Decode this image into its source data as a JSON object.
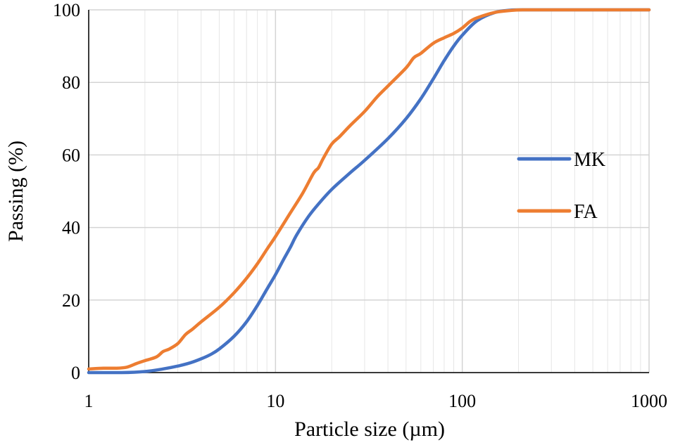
{
  "chart_data": {
    "type": "line",
    "title": "",
    "xlabel": "Particle size (µm)",
    "ylabel": "Passing (%)",
    "xscale": "log",
    "xlim": [
      1,
      1000
    ],
    "ylim": [
      0,
      100
    ],
    "x_ticks": [
      {
        "value": 1,
        "label": "1"
      },
      {
        "value": 10,
        "label": "10"
      },
      {
        "value": 100,
        "label": "100"
      },
      {
        "value": 1000,
        "label": "1000"
      }
    ],
    "y_ticks": [
      {
        "value": 0,
        "label": "0"
      },
      {
        "value": 20,
        "label": "20"
      },
      {
        "value": 40,
        "label": "40"
      },
      {
        "value": 60,
        "label": "60"
      },
      {
        "value": 80,
        "label": "80"
      },
      {
        "value": 100,
        "label": "100"
      }
    ],
    "grid": true,
    "legend_position": "right",
    "series": [
      {
        "name": "MK",
        "color": "#4472C4",
        "x": [
          1,
          1.5,
          2,
          2.5,
          3,
          3.5,
          4,
          4.5,
          5,
          6,
          7,
          8,
          9,
          10,
          11,
          12,
          13,
          15,
          17,
          20,
          25,
          30,
          40,
          50,
          60,
          70,
          80,
          90,
          100,
          120,
          150,
          180,
          210,
          300,
          500,
          1000
        ],
        "y": [
          0,
          0,
          0.3,
          1,
          1.8,
          2.7,
          3.8,
          5,
          6.5,
          10,
          14,
          18.5,
          23,
          27,
          31,
          34.5,
          38,
          43,
          46.5,
          50.5,
          55,
          58.5,
          64.5,
          70,
          75.5,
          81,
          86,
          90,
          93,
          97,
          99.3,
          99.9,
          100,
          100,
          100,
          100
        ]
      },
      {
        "name": "FA",
        "color": "#ED7D31",
        "x": [
          1,
          1.2,
          1.4,
          1.6,
          1.8,
          2,
          2.3,
          2.5,
          2.7,
          3,
          3.3,
          3.6,
          4,
          5,
          6,
          7,
          8,
          9,
          10,
          12,
          14,
          16,
          17,
          18,
          20,
          22,
          25,
          30,
          35,
          40,
          50,
          55,
          60,
          70,
          80,
          90,
          100,
          110,
          120,
          150,
          180,
          210,
          300,
          500,
          1000
        ],
        "y": [
          1,
          1.2,
          1.2,
          1.5,
          2.5,
          3.3,
          4.3,
          5.8,
          6.5,
          8,
          10.5,
          12,
          14,
          18,
          22,
          26,
          30,
          34,
          37.5,
          44,
          49.5,
          55,
          56.5,
          59,
          63,
          65,
          68,
          72,
          76,
          79,
          84,
          86.8,
          88,
          90.8,
          92.3,
          93.5,
          95,
          96.8,
          97.8,
          99.3,
          99.8,
          100,
          100,
          100,
          100
        ]
      }
    ]
  }
}
